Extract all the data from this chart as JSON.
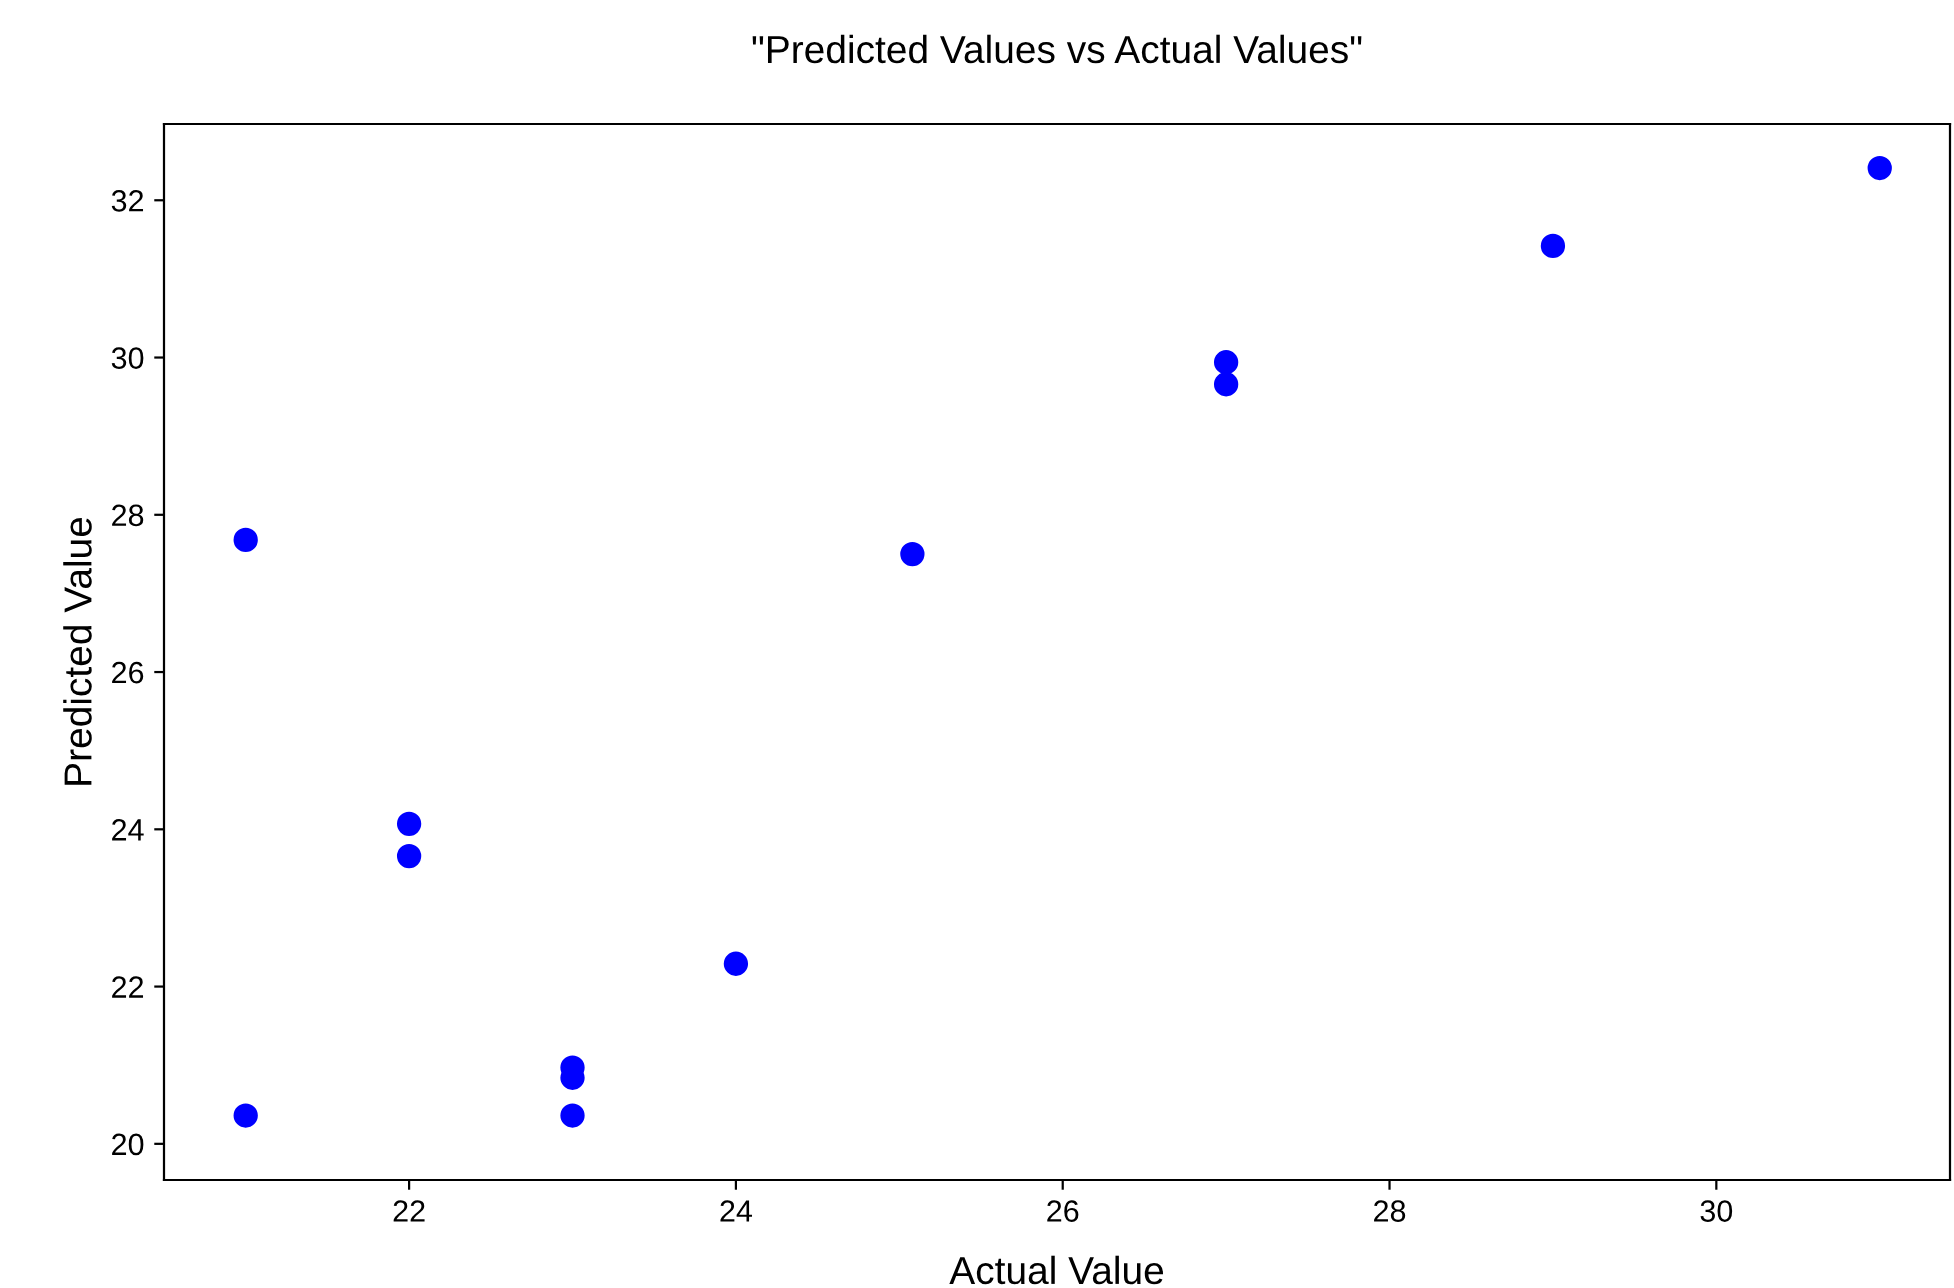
{
  "chart_data": {
    "type": "scatter",
    "title": "\"Predicted Values vs Actual Values\"",
    "xlabel": "Actual Value",
    "ylabel": "Predicted Value",
    "x": [
      21,
      21,
      22,
      22,
      23,
      23,
      23,
      24,
      25.08,
      27,
      27,
      29,
      31
    ],
    "series": [
      {
        "color": "#0000ff",
        "values": [
          27.68,
          20.36,
          24.07,
          23.66,
          20.97,
          20.84,
          20.36,
          22.29,
          27.5,
          29.94,
          29.66,
          31.42,
          32.41
        ]
      }
    ],
    "xlim": [
      20.5,
      31.43
    ],
    "ylim": [
      19.54,
      32.97
    ],
    "xticks": [
      22,
      24,
      26,
      28,
      30
    ],
    "yticks": [
      20,
      22,
      24,
      26,
      28,
      30,
      32
    ],
    "grid": false,
    "legend": false,
    "marker": "circle"
  }
}
